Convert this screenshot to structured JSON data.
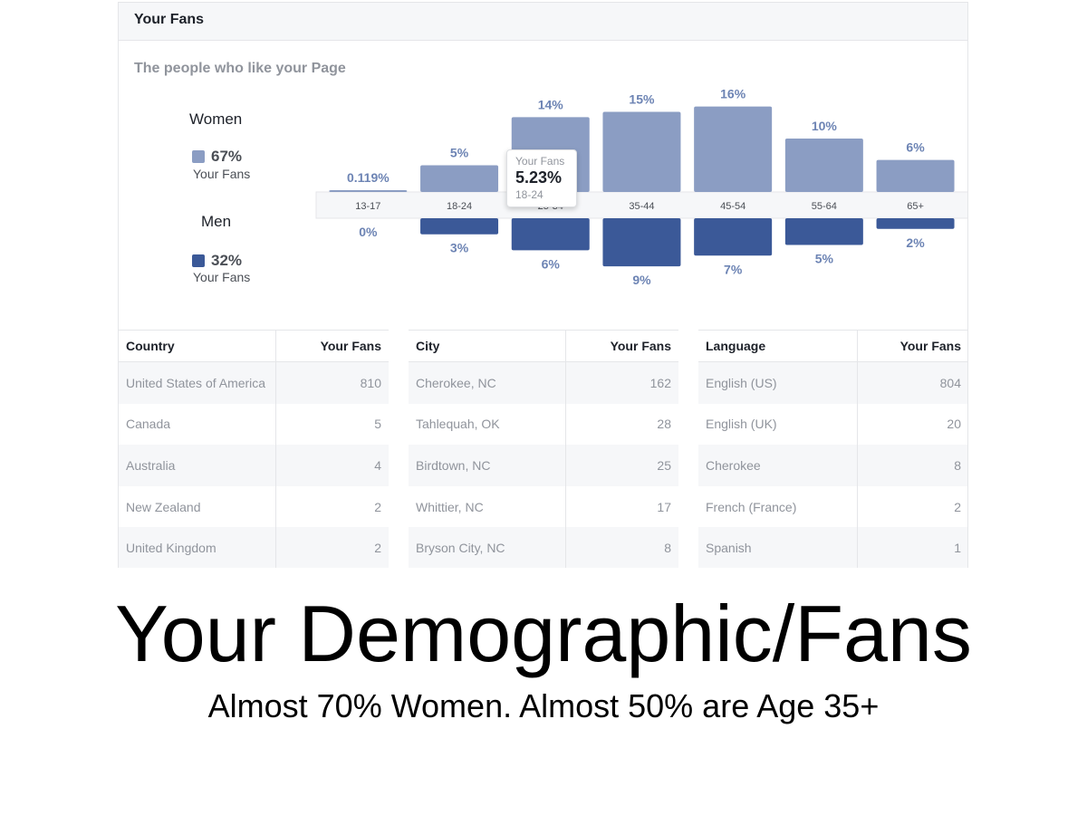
{
  "card": {
    "title": "Your Fans",
    "subtitle": "The people who like your Page"
  },
  "legend": {
    "women": {
      "title": "Women",
      "pct": "67%",
      "sub": "Your Fans"
    },
    "men": {
      "title": "Men",
      "pct": "32%",
      "sub": "Your Fans"
    }
  },
  "colors": {
    "women": "#8b9dc3",
    "men": "#3b5998",
    "label": "#6d84b4"
  },
  "tooltip": {
    "label": "Your Fans",
    "value": "5.23%",
    "category": "18-24"
  },
  "chart_data": {
    "type": "bar",
    "categories": [
      "13-17",
      "18-24",
      "25-34",
      "35-44",
      "45-54",
      "55-64",
      "65+"
    ],
    "series": [
      {
        "name": "Women",
        "values": [
          0.119,
          5,
          14,
          15,
          16,
          10,
          6
        ],
        "labels": [
          "0.119%",
          "5%",
          "14%",
          "15%",
          "16%",
          "10%",
          "6%"
        ]
      },
      {
        "name": "Men",
        "values": [
          0,
          3,
          6,
          9,
          7,
          5,
          2
        ],
        "labels": [
          "0%",
          "3%",
          "6%",
          "9%",
          "7%",
          "5%",
          "2%"
        ]
      }
    ],
    "ylim": [
      0,
      16
    ]
  },
  "tables": {
    "country": {
      "headers": [
        "Country",
        "Your Fans"
      ],
      "rows": [
        [
          "United States of America",
          "810"
        ],
        [
          "Canada",
          "5"
        ],
        [
          "Australia",
          "4"
        ],
        [
          "New Zealand",
          "2"
        ],
        [
          "United Kingdom",
          "2"
        ]
      ]
    },
    "city": {
      "headers": [
        "City",
        "Your Fans"
      ],
      "rows": [
        [
          "Cherokee, NC",
          "162"
        ],
        [
          "Tahlequah, OK",
          "28"
        ],
        [
          "Birdtown, NC",
          "25"
        ],
        [
          "Whittier, NC",
          "17"
        ],
        [
          "Bryson City, NC",
          "8"
        ]
      ]
    },
    "language": {
      "headers": [
        "Language",
        "Your Fans"
      ],
      "rows": [
        [
          "English (US)",
          "804"
        ],
        [
          "English (UK)",
          "20"
        ],
        [
          "Cherokee",
          "8"
        ],
        [
          "French (France)",
          "2"
        ],
        [
          "Spanish",
          "1"
        ]
      ]
    }
  },
  "slide": {
    "title": "Your Demographic/Fans",
    "subtitle": "Almost 70% Women. Almost 50% are Age 35+"
  }
}
